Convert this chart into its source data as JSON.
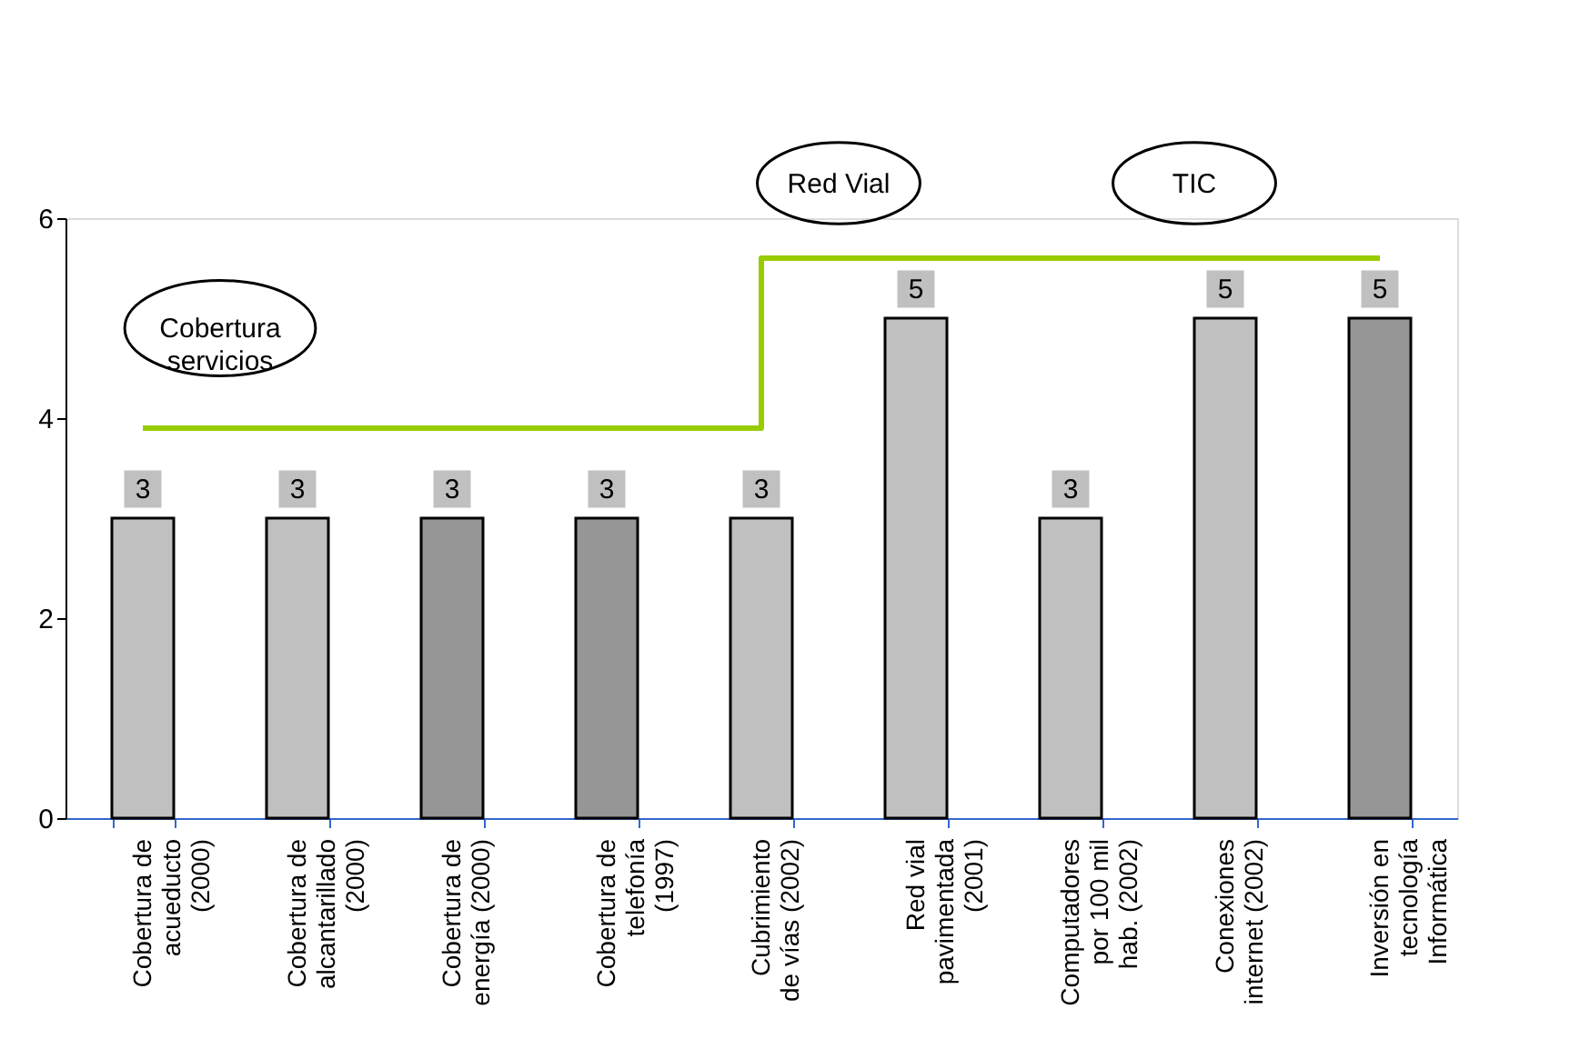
{
  "chart_data": {
    "type": "bar",
    "categories": [
      "Cobertura de\nacueducto\n(2000)",
      "Cobertura de\nalcantarillado\n(2000)",
      "Cobertura de\nenergía (2000)",
      "Cobertura de\ntelefonía\n(1997)",
      "Cubrimiento\nde vías (2002)",
      "Red vial\npavimentada\n(2001)",
      "Computadores\npor 100 mil\nhab. (2002)",
      "Conexiones\ninternet (2002)",
      "Inversión en\ntecnología\nInformática"
    ],
    "series": [
      {
        "values": [
          3,
          3,
          3,
          3,
          3,
          5,
          3,
          5,
          5
        ],
        "value_labels": [
          "3",
          "3",
          "3",
          "3",
          "3",
          "5",
          "3",
          "5",
          "5"
        ],
        "colors": [
          "#c0c0c0",
          "#c0c0c0",
          "#969696",
          "#969696",
          "#c0c0c0",
          "#c0c0c0",
          "#c0c0c0",
          "#c0c0c0",
          "#969696"
        ]
      },
      {
        "type": "step",
        "color": "#99cc00",
        "values": [
          3.9,
          3.9,
          3.9,
          3.9,
          5.6,
          5.6,
          5.6,
          5.6,
          5.6
        ]
      }
    ],
    "ylim": [
      0,
      6
    ],
    "yticks": [
      0,
      2,
      4,
      6
    ],
    "grid": false,
    "annotations": [
      "Cobertura\nservicios",
      "Red Vial",
      "TIC"
    ]
  }
}
